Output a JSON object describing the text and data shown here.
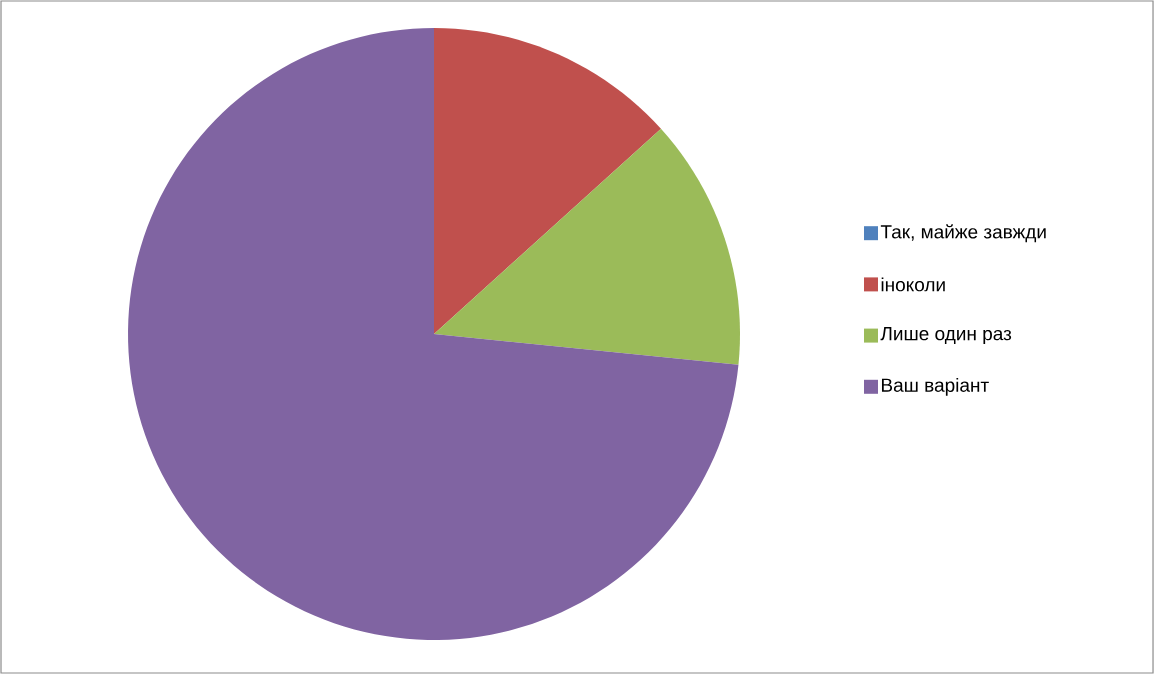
{
  "chart_data": {
    "type": "pie",
    "categories": [
      "Так, майже завжди",
      "іноколи",
      "Лише один раз",
      "Ваш варіант"
    ],
    "values": [
      0,
      13.3,
      13.3,
      73.4
    ],
    "colors": [
      "#4f81bd",
      "#c0504d",
      "#9bbb59",
      "#8064a2"
    ],
    "legend": "right"
  }
}
